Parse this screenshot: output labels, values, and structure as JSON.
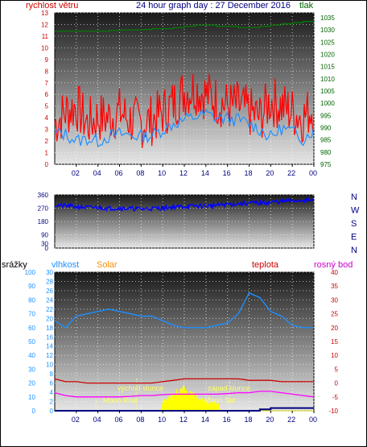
{
  "header": {
    "left_label": "rychlost větru",
    "title": "24 hour graph day : 27 December 2016",
    "right_label": "tlak"
  },
  "colors": {
    "wind": "#ff0000",
    "pressure": "#008000",
    "humidity_line": "#1e90ff",
    "temp_line": "#cc0000",
    "dewpoint_line": "#ff00ff",
    "solar_fill": "#ffff00",
    "rain_line": "#000080",
    "direction_line": "#0000ff",
    "title_text": "#000080",
    "wind_text": "#cc0000",
    "pressure_text": "#006400",
    "solar_text": "#ff8c00",
    "dewpoint_text": "#cc00cc"
  },
  "x_ticks": [
    "02",
    "04",
    "06",
    "08",
    "10",
    "12",
    "14",
    "16",
    "18",
    "20",
    "22",
    "00"
  ],
  "chart_data": [
    {
      "type": "line",
      "panel": "wind-pressure",
      "title": "24 hour graph day : 27 December 2016",
      "y_left": {
        "label": "rychlost větru",
        "ticks": [
          0,
          1,
          2,
          3,
          4,
          5,
          6,
          7,
          8,
          9,
          10,
          11,
          12,
          13
        ],
        "range": [
          0,
          13
        ]
      },
      "y_right": {
        "label": "tlak",
        "ticks": [
          975,
          980,
          985,
          990,
          995,
          1000,
          1005,
          1010,
          1015,
          1020,
          1025,
          1030,
          1035
        ],
        "range": [
          975,
          1037
        ]
      },
      "x": [
        0,
        1,
        2,
        3,
        4,
        5,
        6,
        7,
        8,
        9,
        10,
        11,
        12,
        13,
        14,
        15,
        16,
        17,
        18,
        19,
        20,
        21,
        22,
        23,
        24
      ],
      "series": [
        {
          "name": "rychlost větru",
          "axis": "left",
          "values": [
            3.5,
            4.5,
            5.0,
            3.5,
            4.0,
            4.0,
            4.5,
            3.8,
            3.5,
            3.8,
            4.5,
            5.2,
            6.2,
            6.5,
            6.0,
            5.5,
            5.0,
            5.0,
            4.5,
            4.0,
            5.5,
            5.0,
            4.5,
            4.0,
            5.0
          ]
        },
        {
          "name": "",
          "axis": "left",
          "values": [
            2.7,
            2.6,
            2.0,
            2.2,
            2.0,
            2.4,
            2.6,
            2.5,
            2.4,
            2.5,
            3.0,
            3.5,
            3.8,
            4.1,
            4.3,
            4.0,
            3.9,
            3.8,
            3.5,
            3.0,
            2.3,
            3.1,
            2.8,
            2.2,
            3.0
          ]
        },
        {
          "name": "tlak",
          "axis": "right",
          "values": [
            1029.5,
            1029.5,
            1029.5,
            1029.5,
            1029.5,
            1029.8,
            1030.0,
            1030.0,
            1030.2,
            1030.5,
            1030.5,
            1031.0,
            1031.5,
            1032.0,
            1032.0,
            1031.5,
            1031.5,
            1031.0,
            1031.0,
            1031.5,
            1032.0,
            1032.5,
            1033.0,
            1033.5,
            1033.5
          ]
        }
      ]
    },
    {
      "type": "line",
      "panel": "wind-direction",
      "y_left": {
        "ticks": [
          0,
          30,
          90,
          180,
          270,
          360
        ],
        "range": [
          0,
          360
        ]
      },
      "y_right": {
        "ticks": [
          "N",
          "W",
          "S",
          "E",
          "N"
        ]
      },
      "x": [
        0,
        1,
        2,
        3,
        4,
        5,
        6,
        7,
        8,
        9,
        10,
        11,
        12,
        13,
        14,
        15,
        16,
        17,
        18,
        19,
        20,
        21,
        22,
        23,
        24
      ],
      "series": [
        {
          "name": "",
          "values": [
            290,
            285,
            280,
            275,
            275,
            270,
            270,
            268,
            265,
            268,
            272,
            278,
            282,
            285,
            285,
            290,
            295,
            300,
            305,
            305,
            310,
            315,
            320,
            325,
            320
          ]
        }
      ]
    },
    {
      "type": "line",
      "panel": "humidity-temperature",
      "y_rain": {
        "label": "srážky",
        "ticks": [
          0,
          10,
          20,
          30,
          40,
          50,
          60,
          70,
          80,
          90,
          100
        ],
        "range": [
          0,
          100
        ]
      },
      "y_humidity": {
        "label": "vlhkost",
        "ticks": [
          0,
          2,
          4,
          6,
          8,
          10,
          12,
          14,
          16,
          18,
          20,
          22,
          24,
          26,
          28,
          30
        ],
        "range": [
          0,
          30
        ]
      },
      "y_temp": {
        "label": "teplota",
        "ticks": [
          -10,
          -5,
          0,
          5,
          10,
          15,
          20,
          25,
          30,
          35,
          40
        ],
        "range": [
          -10,
          40
        ]
      },
      "legend": [
        "srážky",
        "vlhkost",
        "Solar",
        "teplota",
        "rosný bod"
      ],
      "annotations": [
        "východ slunce",
        "západ slunce",
        "Moon Rise",
        "Moon Set"
      ],
      "sunrise_hour": 7.6,
      "sunset_hour": 16.2,
      "moonrise_hour": 3.8,
      "moonset_hour": 14.2,
      "x": [
        0,
        1,
        2,
        3,
        4,
        5,
        6,
        7,
        8,
        9,
        10,
        11,
        12,
        13,
        14,
        15,
        16,
        17,
        18,
        19,
        20,
        21,
        22,
        23,
        24
      ],
      "series": [
        {
          "name": "vlhkost",
          "axis": "humidity",
          "values": [
            19.5,
            18.0,
            20.5,
            21.0,
            21.5,
            22.0,
            21.5,
            21.0,
            20.5,
            20.5,
            19.5,
            18.5,
            18.0,
            18.0,
            18.0,
            18.5,
            19.0,
            21.0,
            25.5,
            24.5,
            21.5,
            20.5,
            18.5,
            18.0,
            18.0
          ]
        },
        {
          "name": "teplota",
          "axis": "temp",
          "values": [
            1.5,
            0.5,
            0.5,
            0,
            0,
            0,
            0,
            0,
            0,
            0,
            0.5,
            1.0,
            1.5,
            1.5,
            1.5,
            1.5,
            1.5,
            1.5,
            1.0,
            1.0,
            1.0,
            0.5,
            0.5,
            0.5,
            0.5
          ]
        },
        {
          "name": "rosný bod",
          "axis": "temp",
          "values": [
            -3.5,
            -4.5,
            -5.0,
            -5.0,
            -5.0,
            -5.0,
            -5.0,
            -4.8,
            -4.5,
            -4.5,
            -4.2,
            -4.0,
            -4.0,
            -4.0,
            -4.0,
            -4.0,
            -3.8,
            -3.5,
            -3.5,
            -3.0,
            -3.0,
            -3.5,
            -4.0,
            -4.5,
            -5.0
          ]
        },
        {
          "name": "srážky",
          "axis": "rain",
          "values": [
            0,
            0,
            0,
            0,
            0,
            0,
            0,
            0,
            0,
            0,
            0,
            0,
            0,
            0,
            0,
            0,
            0,
            0,
            0,
            1,
            2,
            2,
            2,
            2,
            2
          ]
        },
        {
          "name": "Solar",
          "axis": "humidity",
          "values": [
            0,
            0,
            0,
            0,
            0,
            0,
            0,
            0,
            0,
            0,
            1.5,
            3.5,
            5.0,
            3.0,
            2.0,
            1.0,
            0,
            0,
            0,
            0,
            0,
            0,
            0,
            0,
            0
          ]
        }
      ]
    }
  ],
  "panel2_labels": {
    "rain": "srážky",
    "humidity": "vlhkost",
    "solar": "Solar",
    "temperature": "teplota",
    "dewpoint": "rosný bod"
  },
  "annotations": {
    "sunrise": "východ slunce",
    "sunset": "západ slunce",
    "moonrise": "Moon Rise",
    "moonset": "Moon Set"
  }
}
